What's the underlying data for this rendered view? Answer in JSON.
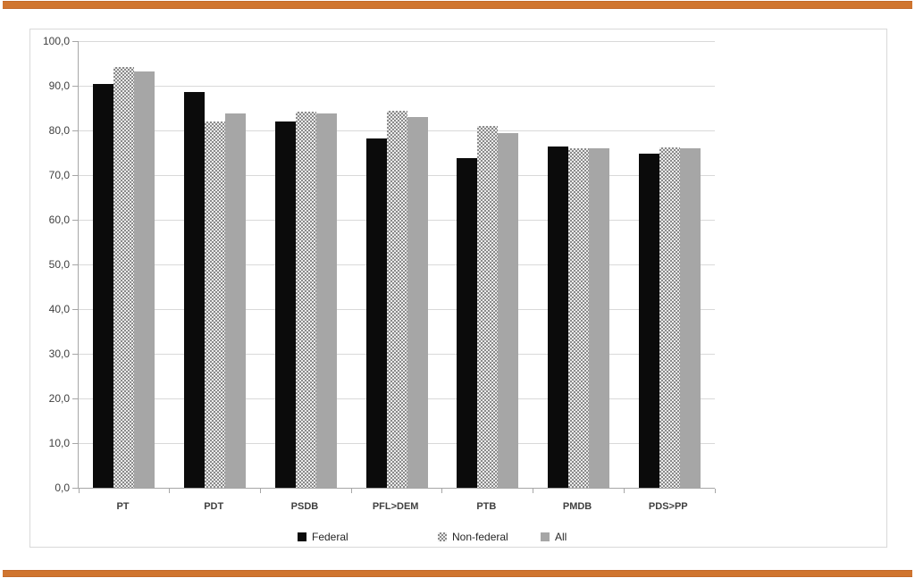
{
  "accent": {
    "bar_color": "#d0752f"
  },
  "colors": {
    "gridline": "#d9d9d9",
    "axis": "#a6a6a6",
    "chart_border": "#d9d9d9",
    "text": "#404040",
    "federal_bar": "#0b0b0b",
    "nonfederal_pattern_dot": "#8a8a8a",
    "nonfederal_pattern_base": "#ebebeb",
    "all_bar": "#a6a6a6"
  },
  "chart_data": {
    "type": "bar",
    "title": "",
    "xlabel": "",
    "ylabel": "",
    "categories": [
      "PT",
      "PDT",
      "PSDB",
      "PFL>DEM",
      "PTB",
      "PMDB",
      "PDS>PP"
    ],
    "series": [
      {
        "name": "Federal",
        "style": "solid-black",
        "values": [
          90.5,
          88.6,
          82.0,
          78.2,
          73.8,
          76.4,
          74.8
        ]
      },
      {
        "name": "Non-federal",
        "style": "dotted",
        "values": [
          94.3,
          82.0,
          84.3,
          84.4,
          81.0,
          76.0,
          76.3
        ]
      },
      {
        "name": "All",
        "style": "solid-gray",
        "values": [
          93.2,
          83.9,
          83.8,
          83.1,
          79.4,
          76.1,
          76.0
        ]
      }
    ],
    "ylim": [
      0,
      100
    ],
    "ytick_step": 10,
    "ytick_labels": [
      "0,0",
      "10,0",
      "20,0",
      "30,0",
      "40,0",
      "50,0",
      "60,0",
      "70,0",
      "80,0",
      "90,0",
      "100,0"
    ],
    "grid": true,
    "legend_position": "bottom",
    "legend_labels": [
      "Federal",
      "Non-federal",
      "All"
    ]
  }
}
